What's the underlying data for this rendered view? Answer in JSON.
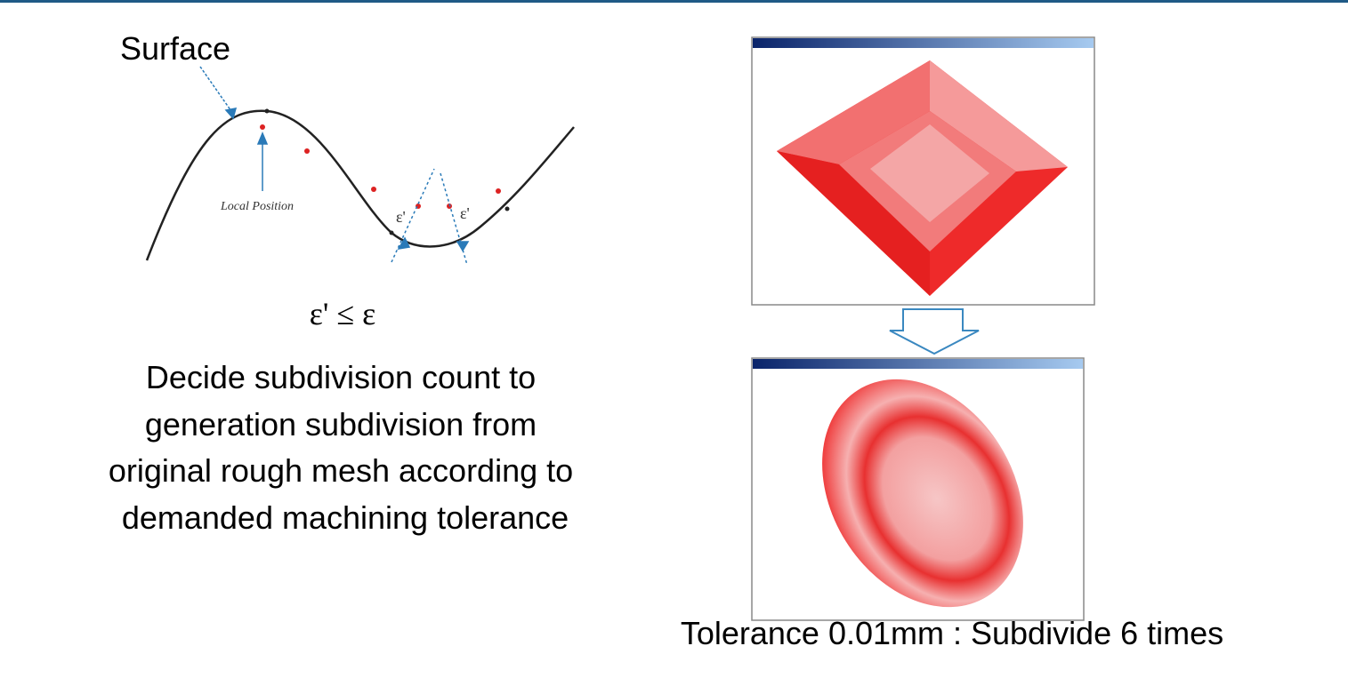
{
  "labels": {
    "surface": "Surface",
    "local_position": "Local Position",
    "epsilon_left": "ε'",
    "epsilon_right": "ε'",
    "formula": "ε' ≤ ε"
  },
  "description": {
    "lines": [
      "Decide subdivision count to",
      "generation subdivision from",
      "original rough mesh according to",
      "demanded machining tolerance"
    ]
  },
  "caption": "Tolerance 0.01mm : Subdivide 6 times"
}
